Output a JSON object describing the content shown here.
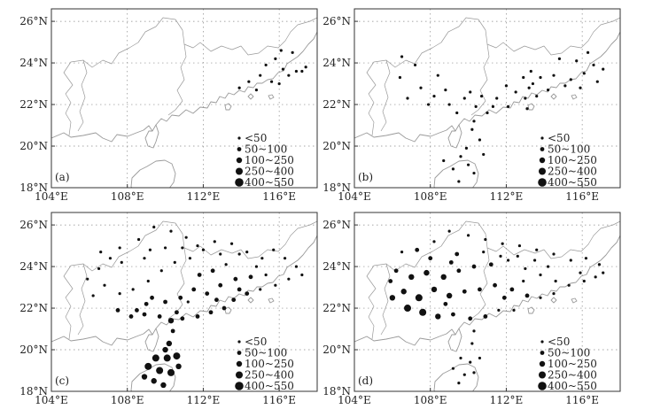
{
  "x_axis": {
    "ticks": [
      {
        "value": 104,
        "label": "104°E"
      },
      {
        "value": 108,
        "label": "108°E"
      },
      {
        "value": 112,
        "label": "112°E"
      },
      {
        "value": 116,
        "label": "116°E"
      }
    ],
    "range": [
      104,
      118
    ]
  },
  "y_axis": {
    "ticks": [
      {
        "value": 18,
        "label": "18°N"
      },
      {
        "value": 20,
        "label": "20°N"
      },
      {
        "value": 22,
        "label": "22°N"
      },
      {
        "value": 24,
        "label": "24°N"
      },
      {
        "value": 26,
        "label": "26°N"
      }
    ],
    "range": [
      18,
      26.6
    ]
  },
  "legend": {
    "placement": "bottom-right",
    "classes": [
      {
        "label": "<50",
        "marker_size": 1
      },
      {
        "label": "50~100",
        "marker_size": 2
      },
      {
        "label": "100~250",
        "marker_size": 3
      },
      {
        "label": "250~400",
        "marker_size": 4
      },
      {
        "label": "400~550",
        "marker_size": 5
      }
    ]
  },
  "colors": {
    "marker": "#111111",
    "coastline": "#9a9a9a",
    "grid": "#8a8a8a",
    "frame": "#333333"
  },
  "map_features": [
    "coastline",
    "provincial-borders",
    "dotted-graticule",
    "hainan-island"
  ],
  "panels": [
    {
      "label": "(a)",
      "stations": [
        [
          115.3,
          23.9,
          1
        ],
        [
          115.8,
          24.2,
          1
        ],
        [
          116.2,
          23.7,
          1
        ],
        [
          116.7,
          24.5,
          1
        ],
        [
          116.5,
          23.4,
          1
        ],
        [
          115.0,
          23.4,
          1
        ],
        [
          114.4,
          23.1,
          1
        ],
        [
          113.9,
          22.8,
          1
        ],
        [
          115.6,
          23.1,
          1
        ],
        [
          116.9,
          23.6,
          1
        ],
        [
          117.2,
          23.6,
          1
        ],
        [
          116.0,
          23.0,
          1
        ],
        [
          114.8,
          22.7,
          1
        ],
        [
          116.1,
          24.6,
          1
        ],
        [
          117.4,
          23.8,
          1
        ]
      ]
    },
    {
      "label": "(b)",
      "stations": [
        [
          106.5,
          24.3,
          1
        ],
        [
          107.2,
          23.9,
          1
        ],
        [
          108.4,
          23.4,
          1
        ],
        [
          107.5,
          22.8,
          1
        ],
        [
          106.8,
          22.3,
          1
        ],
        [
          108.2,
          22.4,
          1
        ],
        [
          109.0,
          22.0,
          1
        ],
        [
          108.8,
          22.7,
          1
        ],
        [
          110.1,
          22.6,
          1
        ],
        [
          110.4,
          21.9,
          1
        ],
        [
          111.0,
          21.6,
          1
        ],
        [
          111.5,
          22.3,
          1
        ],
        [
          112.1,
          21.9,
          1
        ],
        [
          112.5,
          22.6,
          1
        ],
        [
          113.0,
          22.3,
          1
        ],
        [
          113.4,
          23.0,
          1
        ],
        [
          113.6,
          22.4,
          1
        ],
        [
          113.2,
          22.8,
          1
        ],
        [
          113.8,
          23.3,
          1
        ],
        [
          114.2,
          22.7,
          1
        ],
        [
          114.5,
          23.4,
          1
        ],
        [
          115.1,
          22.9,
          1
        ],
        [
          115.4,
          23.2,
          1
        ],
        [
          116.1,
          23.5,
          1
        ],
        [
          116.6,
          23.9,
          1
        ],
        [
          116.3,
          24.5,
          1
        ],
        [
          115.7,
          24.1,
          1
        ],
        [
          117.1,
          23.7,
          1
        ],
        [
          106.4,
          23.3,
          1
        ],
        [
          107.9,
          22.0,
          1
        ],
        [
          109.4,
          21.6,
          1
        ],
        [
          110.3,
          21.2,
          1
        ],
        [
          110.2,
          20.8,
          1
        ],
        [
          110.6,
          20.3,
          1
        ],
        [
          109.6,
          19.5,
          1
        ],
        [
          110.0,
          19.1,
          1
        ],
        [
          109.2,
          18.9,
          1
        ],
        [
          110.3,
          18.7,
          1
        ],
        [
          109.5,
          18.3,
          1
        ],
        [
          108.7,
          19.3,
          1
        ],
        [
          110.8,
          19.6,
          1
        ],
        [
          109.9,
          19.9,
          1
        ],
        [
          113.1,
          21.8,
          1
        ],
        [
          112.0,
          22.9,
          1
        ],
        [
          110.7,
          22.4,
          1
        ],
        [
          114.8,
          24.2,
          1
        ],
        [
          113.3,
          23.6,
          1
        ],
        [
          112.9,
          23.3,
          1
        ],
        [
          109.8,
          22.3,
          1
        ],
        [
          111.3,
          21.9,
          1
        ],
        [
          116.8,
          23.1,
          1
        ],
        [
          115.9,
          22.8,
          1
        ]
      ]
    },
    {
      "label": "(c)",
      "stations": [
        [
          106.6,
          24.7,
          1
        ],
        [
          107.6,
          24.9,
          1
        ],
        [
          108.6,
          25.3,
          1
        ],
        [
          109.4,
          25.9,
          1
        ],
        [
          110.3,
          25.7,
          1
        ],
        [
          111.1,
          25.4,
          1
        ],
        [
          110.0,
          24.9,
          1
        ],
        [
          108.9,
          24.4,
          1
        ],
        [
          107.7,
          24.2,
          1
        ],
        [
          106.5,
          23.9,
          1
        ],
        [
          105.9,
          23.4,
          1
        ],
        [
          106.8,
          23.1,
          1
        ],
        [
          107.6,
          22.7,
          1
        ],
        [
          108.3,
          22.9,
          1
        ],
        [
          109.1,
          23.3,
          1
        ],
        [
          109.8,
          23.8,
          1
        ],
        [
          110.5,
          24.2,
          1
        ],
        [
          111.3,
          24.4,
          1
        ],
        [
          112.0,
          24.8,
          1
        ],
        [
          112.6,
          25.2,
          1
        ],
        [
          113.5,
          25.1,
          1
        ],
        [
          114.3,
          24.7,
          1
        ],
        [
          115.1,
          24.4,
          1
        ],
        [
          115.7,
          24.8,
          1
        ],
        [
          116.3,
          24.4,
          1
        ],
        [
          116.9,
          24.0,
          1
        ],
        [
          117.2,
          23.6,
          1
        ],
        [
          116.5,
          23.4,
          1
        ],
        [
          115.8,
          23.1,
          1
        ],
        [
          115.0,
          22.9,
          1
        ],
        [
          114.3,
          22.7,
          2
        ],
        [
          113.6,
          22.4,
          2
        ],
        [
          113.1,
          22.0,
          2
        ],
        [
          112.4,
          21.8,
          2
        ],
        [
          111.7,
          21.6,
          2
        ],
        [
          110.9,
          21.5,
          2
        ],
        [
          110.3,
          21.4,
          3
        ],
        [
          109.7,
          21.6,
          2
        ],
        [
          108.9,
          21.7,
          2
        ],
        [
          108.2,
          21.6,
          2
        ],
        [
          107.5,
          21.9,
          2
        ],
        [
          112.9,
          23.1,
          2
        ],
        [
          112.2,
          22.7,
          2
        ],
        [
          111.5,
          22.9,
          2
        ],
        [
          110.8,
          22.5,
          2
        ],
        [
          110.0,
          22.3,
          2
        ],
        [
          109.3,
          22.5,
          2
        ],
        [
          113.7,
          23.4,
          2
        ],
        [
          114.5,
          23.5,
          2
        ],
        [
          112.5,
          23.8,
          2
        ],
        [
          111.8,
          23.6,
          2
        ],
        [
          113.2,
          24.1,
          1
        ],
        [
          110.4,
          20.9,
          2
        ],
        [
          110.2,
          20.3,
          3
        ],
        [
          109.5,
          19.6,
          4
        ],
        [
          110.1,
          19.6,
          4
        ],
        [
          110.6,
          19.7,
          4
        ],
        [
          109.1,
          19.2,
          4
        ],
        [
          109.7,
          19.0,
          4
        ],
        [
          110.3,
          18.9,
          4
        ],
        [
          109.4,
          18.5,
          3
        ],
        [
          109.9,
          18.3,
          3
        ],
        [
          108.9,
          18.7,
          3
        ],
        [
          110.7,
          19.2,
          3
        ],
        [
          110.0,
          20.0,
          3
        ],
        [
          109.0,
          22.2,
          2
        ],
        [
          108.5,
          21.9,
          2
        ],
        [
          110.6,
          21.8,
          2
        ],
        [
          111.2,
          22.3,
          1
        ],
        [
          112.7,
          22.4,
          2
        ],
        [
          113.9,
          22.9,
          2
        ],
        [
          115.3,
          23.6,
          1
        ],
        [
          114.8,
          24.0,
          1
        ],
        [
          113.9,
          24.6,
          1
        ],
        [
          112.9,
          24.6,
          1
        ],
        [
          111.7,
          25.0,
          1
        ],
        [
          110.9,
          24.9,
          1
        ],
        [
          109.2,
          24.8,
          1
        ],
        [
          107.1,
          24.4,
          1
        ],
        [
          106.2,
          22.6,
          1
        ]
      ]
    },
    {
      "label": "(d)",
      "stations": [
        [
          106.5,
          24.7,
          1
        ],
        [
          107.3,
          24.8,
          2
        ],
        [
          108.2,
          25.2,
          1
        ],
        [
          109.0,
          25.7,
          1
        ],
        [
          110.0,
          25.5,
          1
        ],
        [
          110.9,
          25.3,
          1
        ],
        [
          111.8,
          25.1,
          1
        ],
        [
          112.7,
          25.0,
          1
        ],
        [
          113.6,
          24.8,
          1
        ],
        [
          114.5,
          24.6,
          1
        ],
        [
          115.4,
          24.3,
          1
        ],
        [
          116.2,
          24.4,
          1
        ],
        [
          116.9,
          24.1,
          1
        ],
        [
          106.2,
          23.8,
          2
        ],
        [
          107.0,
          23.5,
          3
        ],
        [
          107.8,
          23.7,
          3
        ],
        [
          108.7,
          23.5,
          3
        ],
        [
          109.5,
          23.8,
          2
        ],
        [
          110.3,
          24.0,
          2
        ],
        [
          111.2,
          24.1,
          2
        ],
        [
          112.1,
          24.3,
          1
        ],
        [
          113.0,
          23.9,
          1
        ],
        [
          113.8,
          23.6,
          1
        ],
        [
          114.6,
          23.3,
          1
        ],
        [
          115.3,
          23.1,
          1
        ],
        [
          116.1,
          23.3,
          1
        ],
        [
          106.6,
          22.8,
          3
        ],
        [
          107.4,
          22.5,
          4
        ],
        [
          108.2,
          22.9,
          3
        ],
        [
          109.0,
          22.6,
          3
        ],
        [
          109.8,
          22.8,
          2
        ],
        [
          110.6,
          22.9,
          2
        ],
        [
          111.4,
          23.1,
          2
        ],
        [
          112.3,
          22.9,
          2
        ],
        [
          113.1,
          22.6,
          2
        ],
        [
          113.8,
          22.5,
          1
        ],
        [
          114.5,
          22.7,
          1
        ],
        [
          106.8,
          22.0,
          4
        ],
        [
          107.6,
          21.8,
          4
        ],
        [
          108.4,
          21.6,
          3
        ],
        [
          109.2,
          21.7,
          2
        ],
        [
          110.1,
          21.5,
          2
        ],
        [
          110.9,
          21.6,
          2
        ],
        [
          111.6,
          21.9,
          1
        ],
        [
          112.4,
          21.9,
          1
        ],
        [
          108.8,
          22.2,
          2
        ],
        [
          110.3,
          20.9,
          1
        ],
        [
          110.2,
          20.3,
          1
        ],
        [
          109.6,
          19.6,
          1
        ],
        [
          110.1,
          19.4,
          1
        ],
        [
          110.6,
          19.6,
          1
        ],
        [
          109.2,
          19.1,
          1
        ],
        [
          109.8,
          18.8,
          1
        ],
        [
          110.3,
          18.9,
          1
        ],
        [
          109.5,
          18.4,
          1
        ],
        [
          106.0,
          22.5,
          3
        ],
        [
          105.9,
          23.3,
          2
        ],
        [
          109.4,
          24.6,
          2
        ],
        [
          110.8,
          24.7,
          1
        ],
        [
          111.7,
          24.5,
          1
        ],
        [
          112.6,
          24.5,
          1
        ],
        [
          113.5,
          24.3,
          1
        ],
        [
          111.9,
          22.5,
          2
        ],
        [
          112.9,
          23.3,
          1
        ],
        [
          114.2,
          24.0,
          1
        ],
        [
          115.9,
          23.7,
          1
        ],
        [
          116.7,
          23.5,
          1
        ],
        [
          117.1,
          23.7,
          1
        ],
        [
          108.0,
          24.4,
          2
        ],
        [
          109.1,
          24.2,
          2
        ]
      ]
    }
  ]
}
